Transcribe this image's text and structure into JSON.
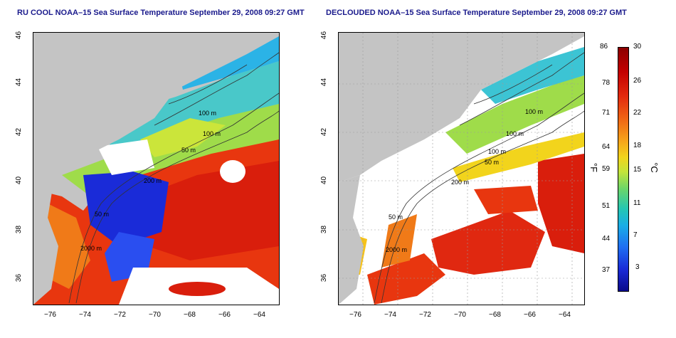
{
  "panels": [
    {
      "title": "RU COOL NOAA–15 Sea Surface Temperature September 29, 2008 09:27 GMT",
      "contour_labels": [
        "100 m",
        "100 m",
        "50 m",
        "200 m",
        "50 m",
        "2000 m"
      ]
    },
    {
      "title": "DECLOUDED NOAA–15 Sea Surface Temperature September 29, 2008 09:27 GMT",
      "contour_labels": [
        "100 m",
        "100 m",
        "100 m",
        "50 m",
        "200 m",
        "50 m",
        "2000 m"
      ]
    }
  ],
  "axes": {
    "lon_ticks": [
      "−76",
      "−74",
      "−72",
      "−70",
      "−68",
      "−66",
      "−64"
    ],
    "lat_ticks": [
      "46",
      "44",
      "42",
      "40",
      "38",
      "36"
    ]
  },
  "colorbar": {
    "fahrenheit_ticks": [
      "86",
      "78",
      "71",
      "64",
      "59",
      "51",
      "44",
      "37"
    ],
    "celsius_ticks": [
      "30",
      "26",
      "22",
      "18",
      "15",
      "11",
      "7",
      "3"
    ],
    "fahrenheit_unit": "°F",
    "celsius_unit": "°C"
  },
  "colors": {
    "land": "#c4c4c4",
    "cloud": "#ffffff",
    "title": "#1a1a8c"
  }
}
